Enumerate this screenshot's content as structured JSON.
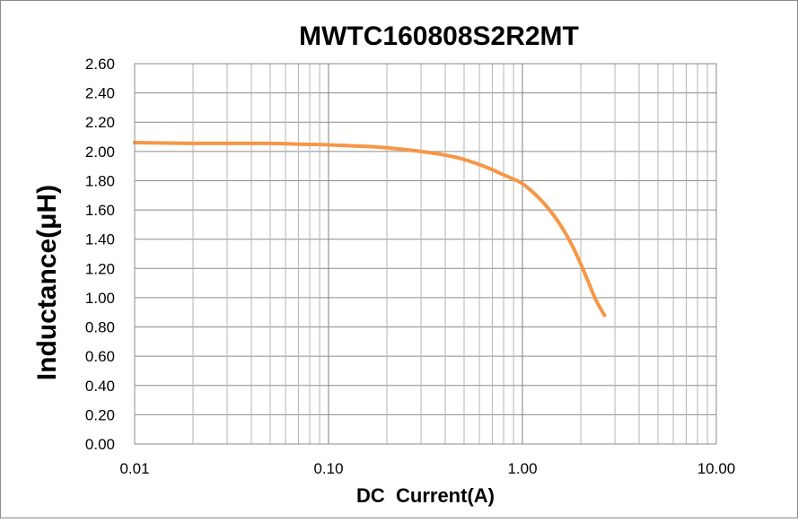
{
  "chart_data": {
    "type": "line",
    "title": "MWTC160808S2R2MT",
    "xlabel": "DC  Current(A)",
    "ylabel": "Inductance(μH)",
    "x_scale": "log",
    "xlim": [
      0.01,
      10
    ],
    "ylim": [
      0,
      2.6
    ],
    "grid": true,
    "x_tick_labels": [
      "0.01",
      "0.10",
      "1.00",
      "10.00"
    ],
    "y_tick_labels": [
      "0.00",
      "0.20",
      "0.40",
      "0.60",
      "0.80",
      "1.00",
      "1.20",
      "1.40",
      "1.60",
      "1.80",
      "2.00",
      "2.20",
      "2.40",
      "2.60"
    ],
    "line_color": "#f79646",
    "series": [
      {
        "x": [
          0.01,
          0.02,
          0.03,
          0.05,
          0.07,
          0.1,
          0.15,
          0.2,
          0.3,
          0.4,
          0.5,
          0.6,
          0.7,
          0.8,
          0.9,
          1.0,
          1.2,
          1.4,
          1.6,
          1.8,
          2.0,
          2.2,
          2.4,
          2.65
        ],
        "y": [
          2.06,
          2.055,
          2.055,
          2.055,
          2.05,
          2.045,
          2.035,
          2.025,
          2.0,
          1.975,
          1.945,
          1.91,
          1.875,
          1.84,
          1.81,
          1.78,
          1.69,
          1.59,
          1.48,
          1.36,
          1.23,
          1.1,
          0.98,
          0.88
        ]
      }
    ]
  }
}
